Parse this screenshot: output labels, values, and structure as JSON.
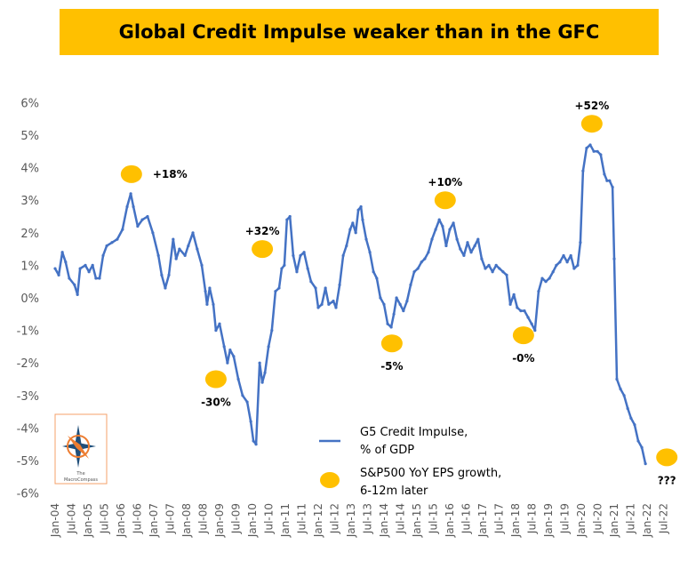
{
  "chart_data": {
    "type": "line",
    "title": "Global Credit Impulse weaker than in the GFC",
    "xlabel": "",
    "ylabel": "",
    "ylim": [
      -6,
      6
    ],
    "y_ticks": [
      "6%",
      "5%",
      "4%",
      "3%",
      "2%",
      "1%",
      "0%",
      "-1%",
      "-2%",
      "-3%",
      "-4%",
      "-5%",
      "-6%"
    ],
    "y_tick_values": [
      6,
      5,
      4,
      3,
      2,
      1,
      0,
      -1,
      -2,
      -3,
      -4,
      -5,
      -6
    ],
    "x_unit": "years since Jan-04",
    "x_ticks": [
      "Jan-04",
      "Jul-04",
      "Jan-05",
      "Jul-05",
      "Jan-06",
      "Jul-06",
      "Jan-07",
      "Jul-07",
      "Jan-08",
      "Jul-08",
      "Jan-09",
      "Jul-09",
      "Jan-10",
      "Jul-10",
      "Jan-11",
      "Jul-11",
      "Jan-12",
      "Jul-12",
      "Jan-13",
      "Jul-13",
      "Jan-14",
      "Jul-14",
      "Jan-15",
      "Jul-15",
      "Jan-16",
      "Jul-16",
      "Jan-17",
      "Jul-17",
      "Jan-18",
      "Jul-18",
      "Jan-19",
      "Jul-19",
      "Jan-20",
      "Jul-20",
      "Jan-21",
      "Jul-21",
      "Jan-22",
      "Jul-22"
    ],
    "grid": false,
    "series": [
      {
        "name": "G5 Credit Impulse, % of GDP",
        "color": "#4472C4",
        "x": [
          0,
          0.11,
          0.22,
          0.32,
          0.43,
          0.59,
          0.68,
          0.76,
          0.92,
          1.03,
          1.14,
          1.24,
          1.35,
          1.46,
          1.57,
          1.73,
          1.89,
          2.05,
          2.19,
          2.3,
          2.38,
          2.51,
          2.65,
          2.81,
          2.97,
          3.14,
          3.24,
          3.35,
          3.46,
          3.59,
          3.68,
          3.78,
          3.95,
          4.05,
          4.19,
          4.32,
          4.46,
          4.57,
          4.62,
          4.7,
          4.81,
          4.89,
          5.0,
          5.14,
          5.24,
          5.32,
          5.43,
          5.57,
          5.7,
          5.84,
          5.95,
          6.03,
          6.11,
          6.22,
          6.3,
          6.38,
          6.49,
          6.59,
          6.7,
          6.81,
          6.89,
          6.97,
          7.05,
          7.14,
          7.24,
          7.35,
          7.46,
          7.57,
          7.68,
          7.78,
          7.92,
          8.0,
          8.11,
          8.22,
          8.32,
          8.46,
          8.54,
          8.65,
          8.76,
          8.86,
          8.97,
          9.05,
          9.14,
          9.22,
          9.3,
          9.35,
          9.46,
          9.57,
          9.68,
          9.78,
          9.89,
          10.0,
          10.11,
          10.22,
          10.3,
          10.38,
          10.49,
          10.59,
          10.7,
          10.81,
          10.92,
          11.03,
          11.14,
          11.24,
          11.35,
          11.46,
          11.57,
          11.68,
          11.78,
          11.89,
          12.0,
          12.11,
          12.22,
          12.32,
          12.43,
          12.54,
          12.65,
          12.76,
          12.86,
          12.97,
          13.08,
          13.19,
          13.3,
          13.41,
          13.51,
          13.62,
          13.73,
          13.84,
          13.95,
          14.05,
          14.16,
          14.27,
          14.38,
          14.49,
          14.59,
          14.7,
          14.81,
          14.92,
          15.03,
          15.14,
          15.24,
          15.35,
          15.46,
          15.57,
          15.68,
          15.78,
          15.89,
          15.97,
          16.05,
          16.16,
          16.27,
          16.38,
          16.49,
          16.59,
          16.7,
          16.78,
          16.86,
          16.95,
          17.0,
          17.08,
          17.19,
          17.3,
          17.41,
          17.51,
          17.62,
          17.73,
          17.84,
          17.95
        ],
        "values": [
          0.9,
          0.7,
          1.4,
          1.1,
          0.6,
          0.4,
          0.1,
          0.9,
          1.0,
          0.8,
          1.0,
          0.6,
          0.6,
          1.3,
          1.6,
          1.7,
          1.8,
          2.1,
          2.8,
          3.2,
          2.8,
          2.2,
          2.4,
          2.5,
          2.0,
          1.3,
          0.7,
          0.3,
          0.7,
          1.8,
          1.2,
          1.5,
          1.3,
          1.6,
          2.0,
          1.5,
          1.0,
          0.2,
          -0.2,
          0.3,
          -0.2,
          -1.0,
          -0.8,
          -1.5,
          -2.0,
          -1.6,
          -1.8,
          -2.5,
          -3.0,
          -3.2,
          -3.8,
          -4.4,
          -4.5,
          -2.0,
          -2.6,
          -2.3,
          -1.5,
          -1.0,
          0.2,
          0.3,
          0.9,
          1.0,
          2.4,
          2.5,
          1.3,
          0.8,
          1.3,
          1.4,
          0.9,
          0.5,
          0.3,
          -0.3,
          -0.2,
          0.3,
          -0.2,
          -0.1,
          -0.3,
          0.4,
          1.3,
          1.6,
          2.1,
          2.3,
          2.0,
          2.7,
          2.8,
          2.4,
          1.8,
          1.4,
          0.8,
          0.6,
          0.0,
          -0.2,
          -0.8,
          -0.9,
          -0.5,
          0.0,
          -0.2,
          -0.4,
          -0.1,
          0.4,
          0.8,
          0.9,
          1.1,
          1.2,
          1.4,
          1.8,
          2.1,
          2.4,
          2.2,
          1.6,
          2.1,
          2.3,
          1.8,
          1.5,
          1.3,
          1.7,
          1.4,
          1.6,
          1.8,
          1.2,
          0.9,
          1.0,
          0.8,
          1.0,
          0.9,
          0.8,
          0.7,
          -0.2,
          0.1,
          -0.3,
          -0.4,
          -0.4,
          -0.6,
          -0.8,
          -1.0,
          0.2,
          0.6,
          0.5,
          0.6,
          0.8,
          1.0,
          1.1,
          1.3,
          1.1,
          1.3,
          0.9,
          1.0,
          1.7,
          3.9,
          4.6,
          4.7,
          4.5,
          4.5,
          4.4,
          3.8,
          3.6,
          3.6,
          3.4,
          1.2,
          -2.5,
          -2.8,
          -3.0,
          -3.4,
          -3.7,
          -3.9,
          -4.4,
          -4.6,
          -5.1
        ]
      },
      {
        "name": "S&P500 YoY EPS growth, 6-12m later",
        "color": "#FFC000",
        "type": "scatter",
        "points": [
          {
            "x": 2.32,
            "y": 3.8,
            "label": "+18%",
            "label_pos": "right"
          },
          {
            "x": 6.3,
            "y": 1.5,
            "label": "+32%",
            "label_pos": "above"
          },
          {
            "x": 4.89,
            "y": -2.5,
            "label": "-30%",
            "label_pos": "below"
          },
          {
            "x": 10.24,
            "y": -1.4,
            "label": "-5%",
            "label_pos": "below"
          },
          {
            "x": 11.86,
            "y": 3.0,
            "label": "+10%",
            "label_pos": "above"
          },
          {
            "x": 14.24,
            "y": -1.15,
            "label": "-0%",
            "label_pos": "below"
          },
          {
            "x": 16.32,
            "y": 5.35,
            "label": "+52%",
            "label_pos": "above"
          },
          {
            "x": 18.6,
            "y": -4.9,
            "label": "???",
            "label_pos": "below",
            "label_color": "#FF0000"
          }
        ]
      }
    ],
    "legend": {
      "placement": "bottom-center",
      "line_label_1": "G5 Credit Impulse,",
      "line_label_2": "% of GDP",
      "dot_label_1": "S&P500 YoY EPS growth,",
      "dot_label_2": "6-12m later"
    }
  },
  "logo": {
    "text_1": "The",
    "text_2": "MacroCompass"
  }
}
